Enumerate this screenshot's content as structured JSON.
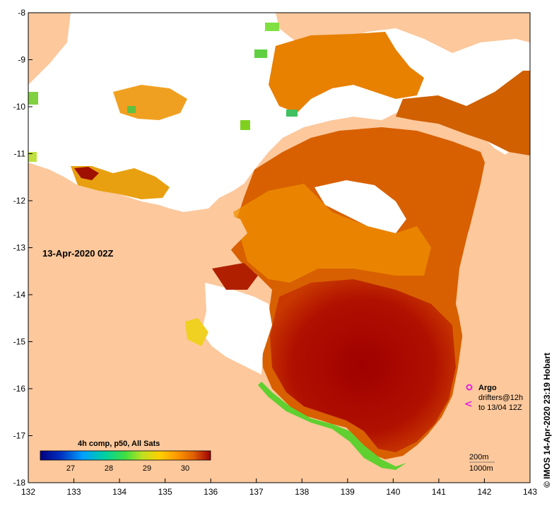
{
  "map": {
    "date_label": "13-Apr-2020 02Z",
    "credit": "© IMOS 14-Apr-2020 23:19 Hobart",
    "x_ticks": [
      "132",
      "133",
      "134",
      "135",
      "136",
      "137",
      "138",
      "139",
      "140",
      "141",
      "142",
      "143"
    ],
    "y_ticks": [
      "-8",
      "-9",
      "-10",
      "-11",
      "-12",
      "-13",
      "-14",
      "-15",
      "-16",
      "-17",
      "-18"
    ],
    "colorbar": {
      "title": "4h comp, p50, All Sats",
      "ticks": [
        "27",
        "28",
        "29",
        "30"
      ],
      "colors": [
        "#000080",
        "#0040d0",
        "#00a0ff",
        "#00d0a0",
        "#40e040",
        "#c0e020",
        "#ffd000",
        "#ff9a00",
        "#e06000",
        "#a00000"
      ]
    },
    "legend": {
      "argo_label": "Argo",
      "drifters_line1": "drifters@12h",
      "drifters_line2": "to 13/04 12Z",
      "argo_color": "#e020e0"
    },
    "depth_legend": {
      "line1": "200m",
      "line2": "1000m"
    },
    "colors": {
      "land": "#fcc89c",
      "sea_hot": "#a00000",
      "sea_warm": "#d86000",
      "sea_mild": "#f09000",
      "sea_cool": "#ffc000"
    }
  }
}
